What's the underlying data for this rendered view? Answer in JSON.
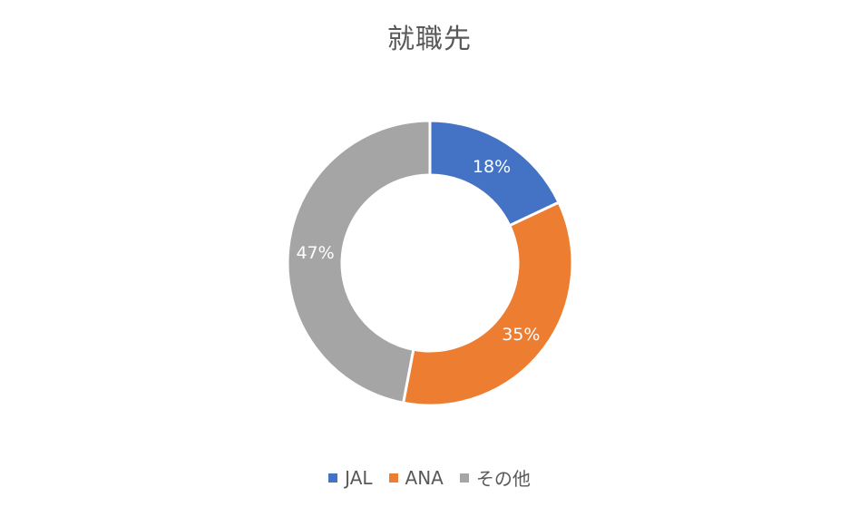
{
  "chart_data": {
    "type": "pie",
    "title": "就職先",
    "categories": [
      "JAL",
      "ANA",
      "その他"
    ],
    "values": [
      18,
      35,
      47
    ],
    "labels": [
      "18%",
      "35%",
      "47%"
    ],
    "colors": [
      "#4472C4",
      "#ED7D31",
      "#A5A5A5"
    ],
    "label_color": "#FFFFFF",
    "legend_position": "bottom"
  }
}
